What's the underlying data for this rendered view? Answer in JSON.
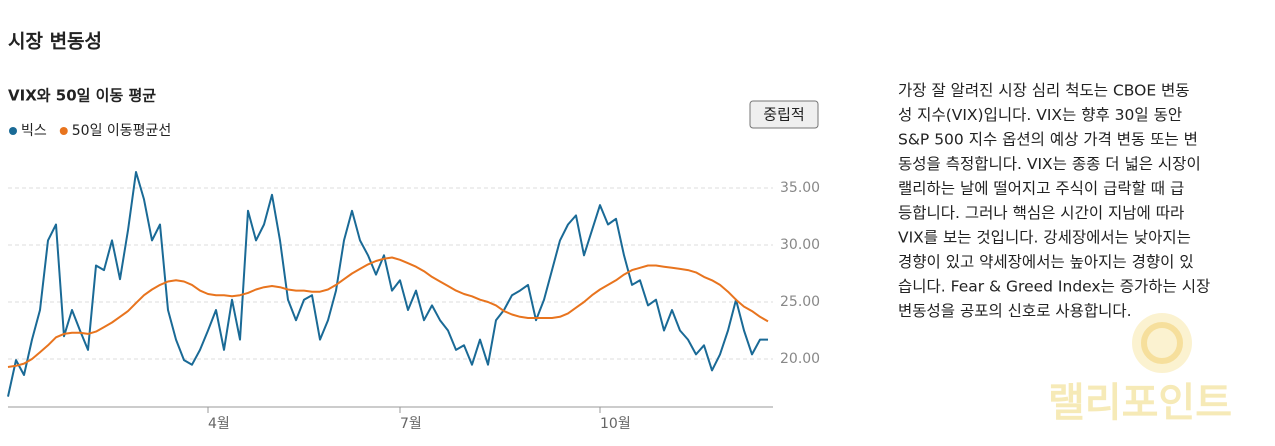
{
  "page_title": "시장 변동성",
  "chart_data": {
    "type": "line",
    "title": "VIX와 50일 이동 평균",
    "categories": [
      null,
      null,
      null,
      null,
      null,
      null,
      null,
      null,
      null,
      null,
      null,
      null,
      null,
      null,
      null,
      null,
      null,
      null,
      null,
      null,
      null,
      null,
      null,
      null,
      null,
      "4월",
      null,
      null,
      null,
      null,
      null,
      null,
      null,
      null,
      null,
      null,
      null,
      null,
      null,
      null,
      null,
      null,
      null,
      null,
      null,
      null,
      null,
      null,
      null,
      "7월",
      null,
      null,
      null,
      null,
      null,
      null,
      null,
      null,
      null,
      null,
      null,
      null,
      null,
      null,
      null,
      null,
      null,
      null,
      null,
      null,
      null,
      null,
      null,
      null,
      "10월",
      null,
      null,
      null,
      null,
      null,
      null,
      null,
      null,
      null,
      null,
      null,
      null,
      null,
      null,
      null,
      null,
      null,
      null,
      null,
      null,
      null
    ],
    "series": [
      {
        "name": "빅스",
        "color": "#1a6a96",
        "values": [
          16.7,
          19.9,
          18.6,
          21.7,
          24.3,
          30.4,
          31.8,
          22,
          24.3,
          22.5,
          20.8,
          28.2,
          27.8,
          30.4,
          27,
          31.3,
          36.4,
          34,
          30.4,
          31.8,
          24.3,
          21.7,
          19.9,
          19.5,
          20.8,
          22.5,
          24.3,
          20.8,
          25.2,
          21.7,
          33,
          30.4,
          31.8,
          34.4,
          30.4,
          25.2,
          23.4,
          25.2,
          25.6,
          21.7,
          23.4,
          26,
          30.4,
          33,
          30.4,
          29.1,
          27.4,
          29.1,
          26,
          26.9,
          24.3,
          26,
          23.4,
          24.7,
          23.4,
          22.5,
          20.8,
          21.2,
          19.5,
          21.7,
          19.5,
          23.4,
          24.3,
          25.6,
          26,
          26.5,
          23.4,
          25.2,
          27.8,
          30.4,
          31.8,
          32.6,
          29.1,
          31.3,
          33.5,
          31.8,
          32.3,
          29.1,
          26.5,
          26.9,
          24.7,
          25.2,
          22.5,
          24.3,
          22.5,
          21.7,
          20.4,
          21.2,
          19,
          20.4,
          22.5,
          25.2,
          22.5,
          20.4,
          21.7,
          21.7
        ]
      },
      {
        "name": "50일 이동평균선",
        "color": "#e8741e",
        "values": [
          19.3,
          19.4,
          19.6,
          20.0,
          20.6,
          21.2,
          21.9,
          22.2,
          22.3,
          22.3,
          22.2,
          22.4,
          22.8,
          23.2,
          23.7,
          24.2,
          24.9,
          25.6,
          26.1,
          26.5,
          26.8,
          26.9,
          26.8,
          26.5,
          26.0,
          25.7,
          25.6,
          25.6,
          25.5,
          25.6,
          25.8,
          26.1,
          26.3,
          26.4,
          26.3,
          26.1,
          26.0,
          26.0,
          25.9,
          25.9,
          26.1,
          26.5,
          27.0,
          27.5,
          27.9,
          28.3,
          28.6,
          28.8,
          28.9,
          28.7,
          28.4,
          28.1,
          27.7,
          27.2,
          26.8,
          26.4,
          26.0,
          25.7,
          25.5,
          25.2,
          25.0,
          24.7,
          24.2,
          23.9,
          23.7,
          23.6,
          23.6,
          23.6,
          23.6,
          23.7,
          24.0,
          24.5,
          25.0,
          25.6,
          26.1,
          26.5,
          26.9,
          27.4,
          27.8,
          28.0,
          28.2,
          28.2,
          28.1,
          28.0,
          27.9,
          27.8,
          27.6,
          27.2,
          26.9,
          26.5,
          25.9,
          25.2,
          24.6,
          24.2,
          23.7,
          23.3
        ]
      }
    ],
    "ylim": [
      16,
      38
    ],
    "yticks": [
      {
        "value": 20,
        "label": "20.00"
      },
      {
        "value": 25,
        "label": "25.00"
      },
      {
        "value": 30,
        "label": "30.00"
      },
      {
        "value": 35,
        "label": "35.00"
      }
    ],
    "grid": true,
    "legend": "top-left"
  },
  "button": "중립적",
  "description": [
    "가장 잘 알려진 시장 심리 척도는 CBOE 변동",
    "성 지수(VIX)입니다. VIX는 향후 30일 동안",
    "S&P 500 지수 옵션의 예상 가격 변동 또는 변",
    "동성을 측정합니다. VIX는 종종 더 넓은 시장이",
    "랠리하는 날에 떨어지고 주식이 급락할 때 급",
    "등합니다. 그러나 핵심은 시간이 지남에 따라",
    "VIX를 보는 것입니다. 강세장에서는 낮아지는",
    "경향이 있고 약세장에서는 높아지는 경향이 있",
    "습니다. Fear & Greed Index는 증가하는 시장",
    "변동성을 공포의 신호로 사용합니다."
  ],
  "watermark": "랠리포인트"
}
